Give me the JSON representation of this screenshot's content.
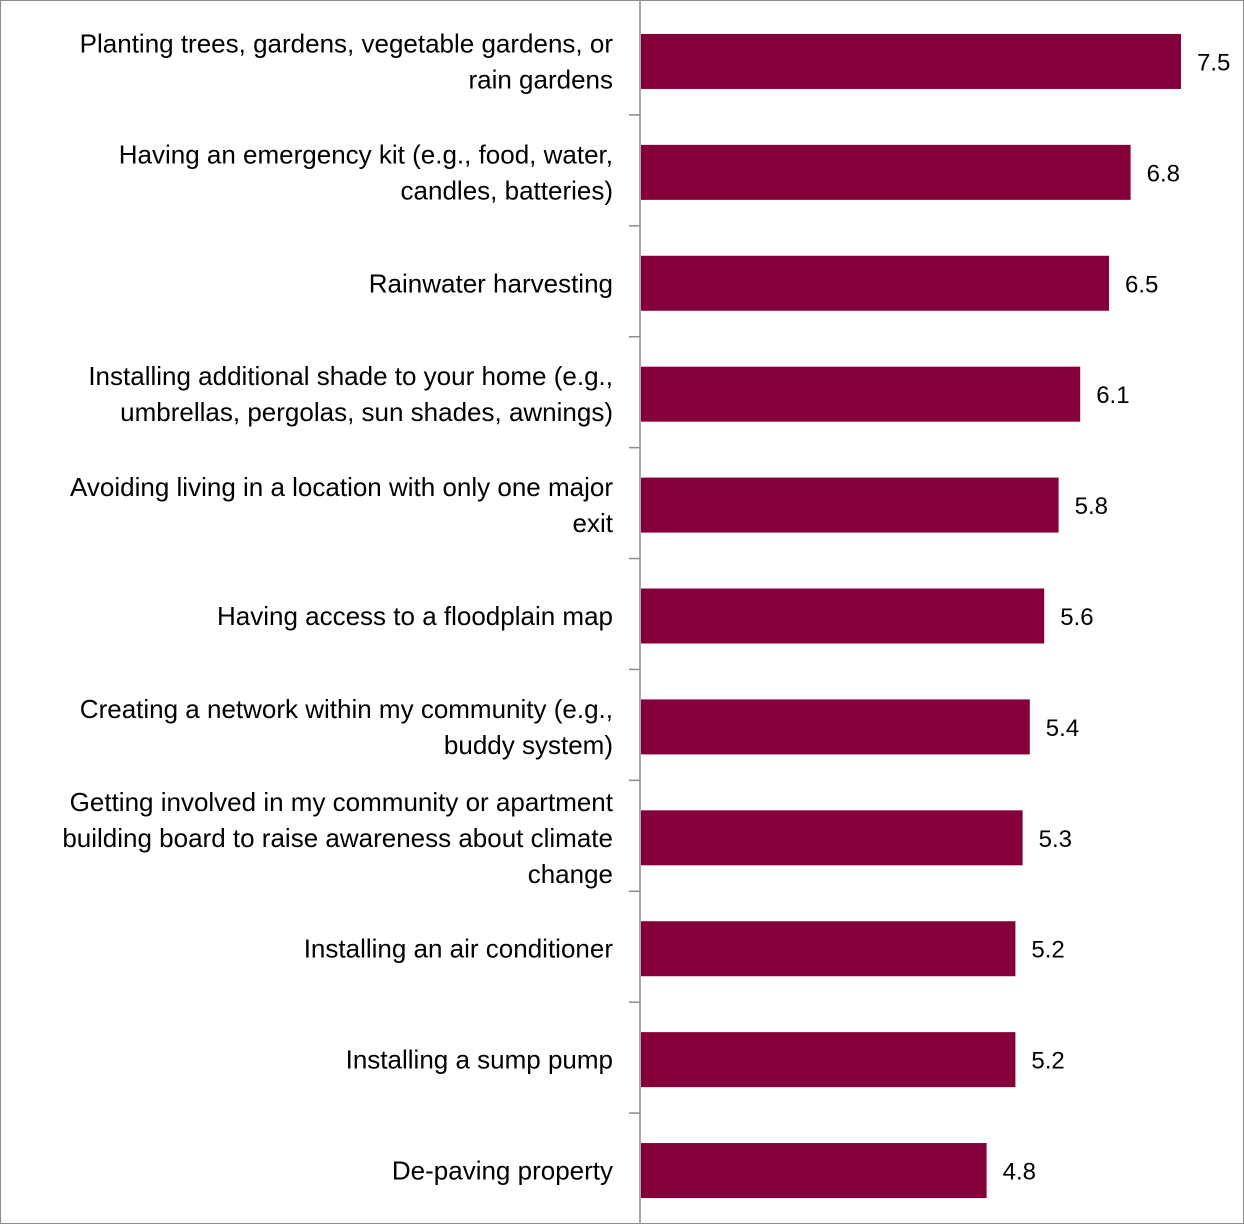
{
  "chart_data": {
    "type": "bar",
    "orientation": "horizontal",
    "title": "",
    "xlabel": "",
    "ylabel": "",
    "grid": false,
    "legend": "none",
    "value_axis_visible": false,
    "xlim": [
      0,
      8
    ],
    "bar_color": "#85003A",
    "categories": [
      [
        "Planting trees, gardens, vegetable gardens, or",
        "rain gardens"
      ],
      [
        "Having an emergency kit (e.g., food, water,",
        "candles, batteries)"
      ],
      [
        "Rainwater harvesting"
      ],
      [
        "Installing additional shade to your home (e.g.,",
        "umbrellas, pergolas, sun shades, awnings)"
      ],
      [
        "Avoiding living in a location with only one major",
        "exit"
      ],
      [
        "Having access to a floodplain map"
      ],
      [
        "Creating a network within my community (e.g.,",
        "buddy system)"
      ],
      [
        "Getting involved in my community or apartment",
        "building board to raise awareness about climate",
        "change"
      ],
      [
        "Installing an air conditioner"
      ],
      [
        "Installing a sump pump"
      ],
      [
        "De-paving property"
      ]
    ],
    "values": [
      7.5,
      6.8,
      6.5,
      6.1,
      5.8,
      5.6,
      5.4,
      5.3,
      5.2,
      5.2,
      4.8
    ],
    "value_labels": [
      "7.5",
      "6.8",
      "6.5",
      "6.1",
      "5.8",
      "5.6",
      "5.4",
      "5.3",
      "5.2",
      "5.2",
      "4.8"
    ]
  }
}
